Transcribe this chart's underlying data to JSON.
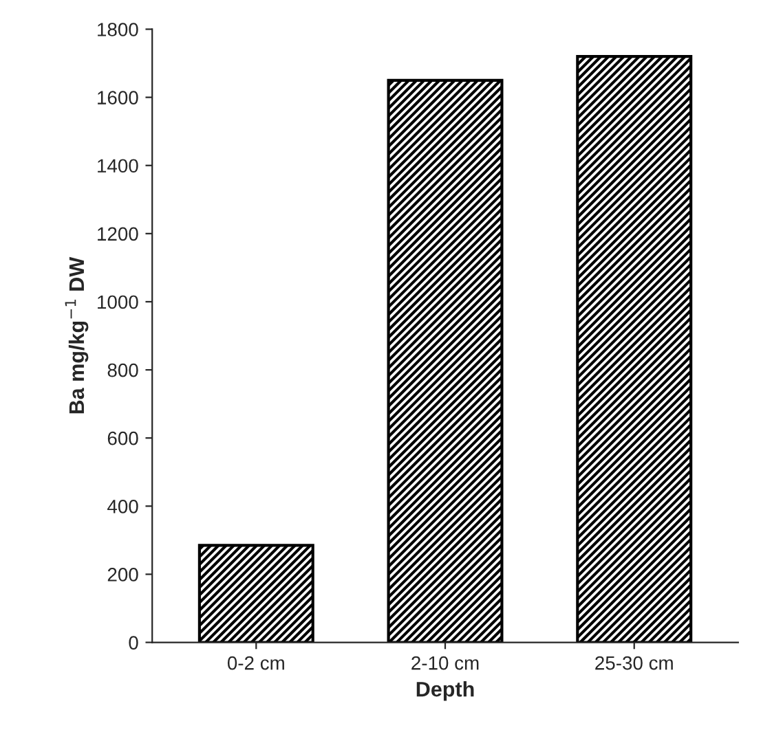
{
  "chart_data": {
    "type": "bar",
    "xlabel": "Depth",
    "ylabel": "Ba mg/kg$^{−1}$ DW",
    "categories": [
      "0-2 cm",
      "2-10 cm",
      "25-30 cm"
    ],
    "values": [
      285,
      1650,
      1720
    ],
    "color": "#000000",
    "ylim": [
      0,
      1800
    ],
    "yticks": [
      0,
      200,
      400,
      600,
      800,
      1000,
      1200,
      1400,
      1600,
      1800
    ],
    "grid": false
  }
}
